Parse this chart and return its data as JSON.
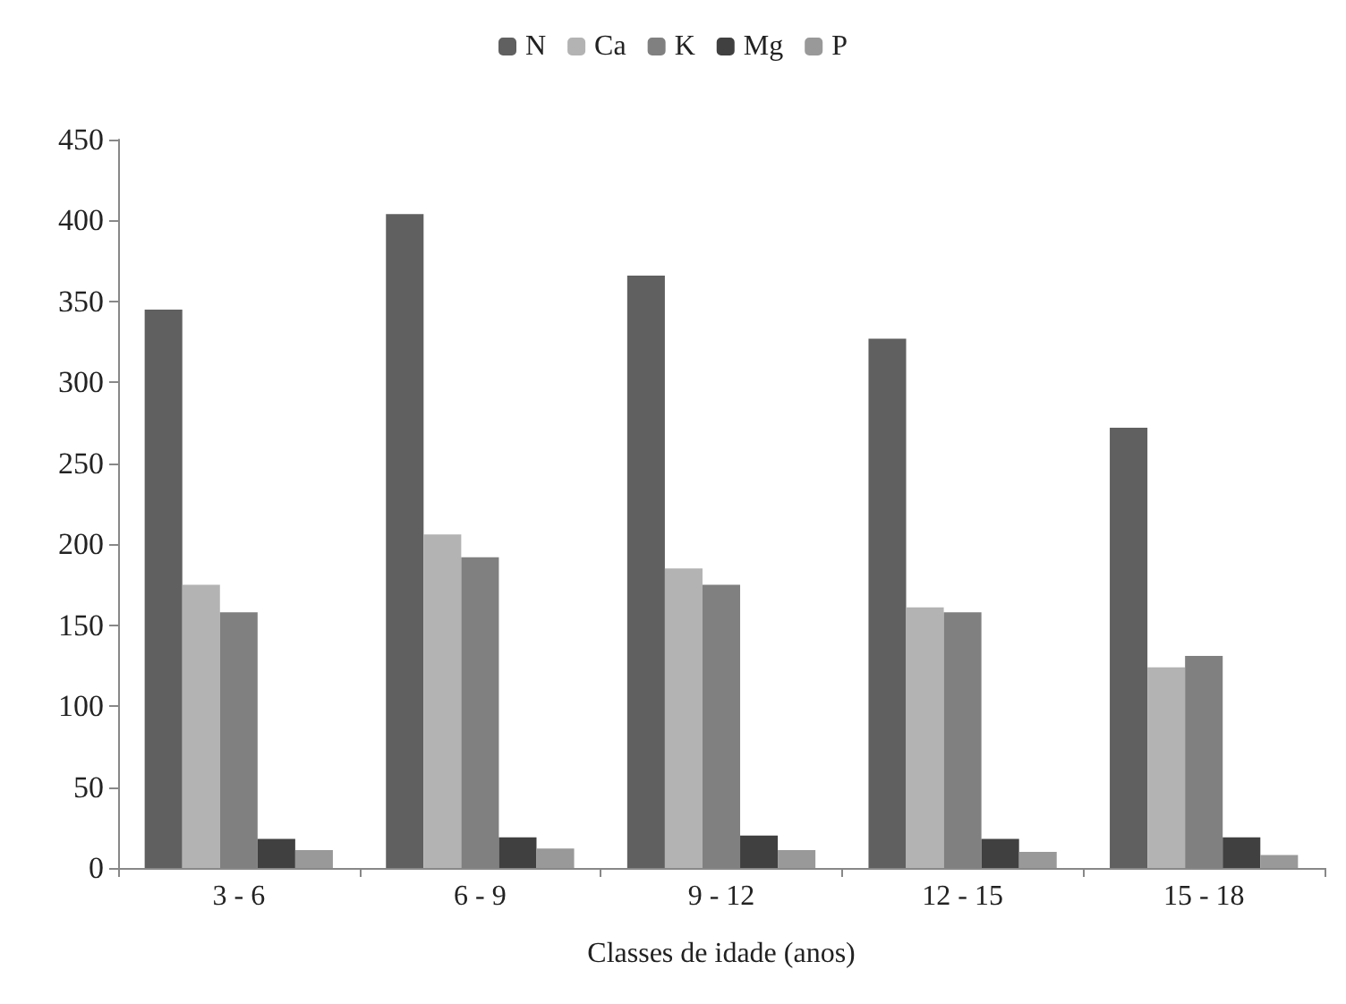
{
  "chart_data": {
    "type": "bar",
    "xlabel": "Classes de idade (anos)",
    "categories": [
      "3 - 6",
      "6 - 9",
      "9 - 12",
      "12 - 15",
      "15 - 18"
    ],
    "series": [
      {
        "name": "N",
        "color": "#606060",
        "values": [
          345,
          404,
          366,
          327,
          272
        ]
      },
      {
        "name": "Ca",
        "color": "#b3b3b3",
        "values": [
          175,
          206,
          185,
          161,
          124
        ]
      },
      {
        "name": "K",
        "color": "#808080",
        "values": [
          158,
          192,
          175,
          158,
          131
        ]
      },
      {
        "name": "Mg",
        "color": "#404040",
        "values": [
          18,
          19,
          20,
          18,
          19
        ]
      },
      {
        "name": "P",
        "color": "#999999",
        "values": [
          11,
          12,
          11,
          10,
          8
        ]
      }
    ],
    "ylim": [
      0,
      450
    ],
    "yticks": [
      0,
      50,
      100,
      150,
      200,
      250,
      300,
      350,
      400,
      450
    ],
    "grid": false,
    "legend": "top"
  }
}
